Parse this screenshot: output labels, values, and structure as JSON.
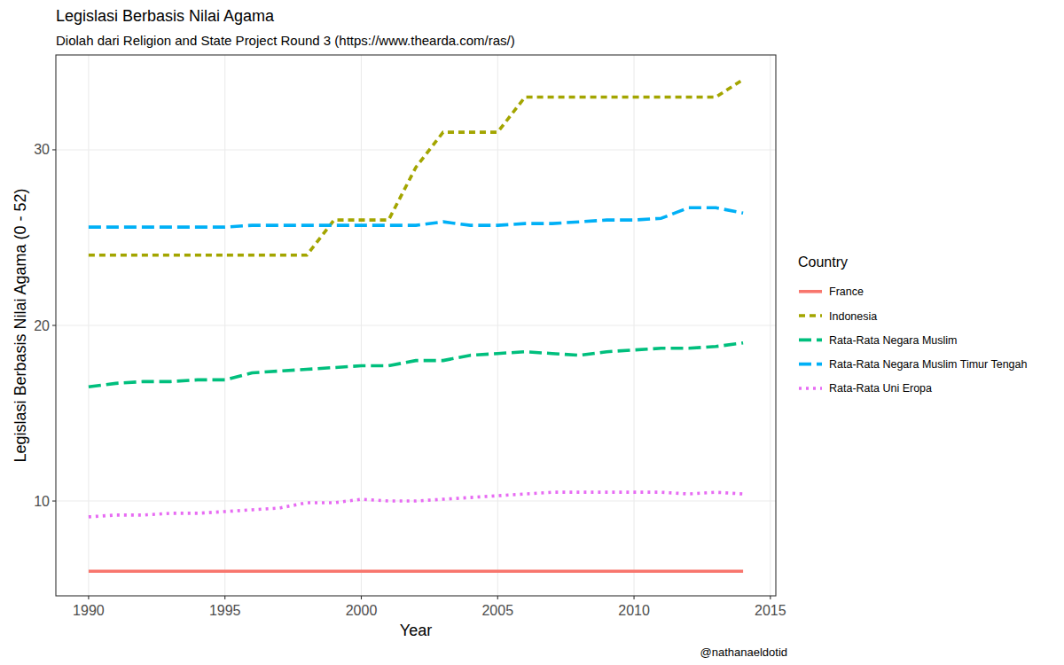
{
  "chart_data": {
    "type": "line",
    "title": "Legislasi Berbasis Nilai Agama",
    "subtitle": "Diolah dari Religion and State Project Round 3 (https://www.thearda.com/ras/)",
    "x_label": "Year",
    "y_label": "Legislasi Berbasis Nilai Agama (0 - 52)",
    "legend_title": "Country",
    "caption": "@nathanaeldotid",
    "legend": "right",
    "grid": true,
    "x": [
      1990,
      1991,
      1992,
      1993,
      1994,
      1995,
      1996,
      1997,
      1998,
      1999,
      2000,
      2001,
      2002,
      2003,
      2004,
      2005,
      2006,
      2007,
      2008,
      2009,
      2010,
      2011,
      2012,
      2013,
      2014
    ],
    "xlim": [
      1988.8,
      2015.2
    ],
    "xticks": [
      1990,
      1995,
      2000,
      2005,
      2010,
      2015
    ],
    "ylim": [
      4.6,
      35.4
    ],
    "yticks": [
      10,
      20,
      30
    ],
    "series": [
      {
        "name": "France",
        "color": "#F8766D",
        "line_style": "solid",
        "values": [
          6,
          6,
          6,
          6,
          6,
          6,
          6,
          6,
          6,
          6,
          6,
          6,
          6,
          6,
          6,
          6,
          6,
          6,
          6,
          6,
          6,
          6,
          6,
          6,
          6
        ]
      },
      {
        "name": "Indonesia",
        "color": "#A3A500",
        "line_style": "dashed",
        "values": [
          24,
          24,
          24,
          24,
          24,
          24,
          24,
          24,
          24,
          26,
          26,
          26,
          29,
          31,
          31,
          31,
          33,
          33,
          33,
          33,
          33,
          33,
          33,
          33,
          34
        ]
      },
      {
        "name": "Rata-Rata Negara Muslim",
        "color": "#00BF7D",
        "line_style": "longdash",
        "values": [
          16.5,
          16.7,
          16.8,
          16.8,
          16.9,
          16.9,
          17.3,
          17.4,
          17.5,
          17.6,
          17.7,
          17.7,
          18.0,
          18.0,
          18.3,
          18.4,
          18.5,
          18.4,
          18.3,
          18.5,
          18.6,
          18.7,
          18.7,
          18.8,
          19.0
        ]
      },
      {
        "name": "Rata-Rata Negara Muslim Timur Tengah",
        "color": "#00B0F6",
        "line_style": "longdash",
        "values": [
          25.6,
          25.6,
          25.6,
          25.6,
          25.6,
          25.6,
          25.7,
          25.7,
          25.7,
          25.7,
          25.7,
          25.7,
          25.7,
          25.9,
          25.7,
          25.7,
          25.8,
          25.8,
          25.9,
          26.0,
          26.0,
          26.1,
          26.7,
          26.7,
          26.4
        ]
      },
      {
        "name": "Rata-Rata Uni Eropa",
        "color": "#E76BF3",
        "line_style": "dotted",
        "values": [
          9.1,
          9.2,
          9.2,
          9.3,
          9.3,
          9.4,
          9.5,
          9.6,
          9.9,
          9.9,
          10.1,
          10.0,
          10.0,
          10.1,
          10.2,
          10.3,
          10.4,
          10.5,
          10.5,
          10.5,
          10.5,
          10.5,
          10.4,
          10.5,
          10.4
        ]
      }
    ]
  }
}
